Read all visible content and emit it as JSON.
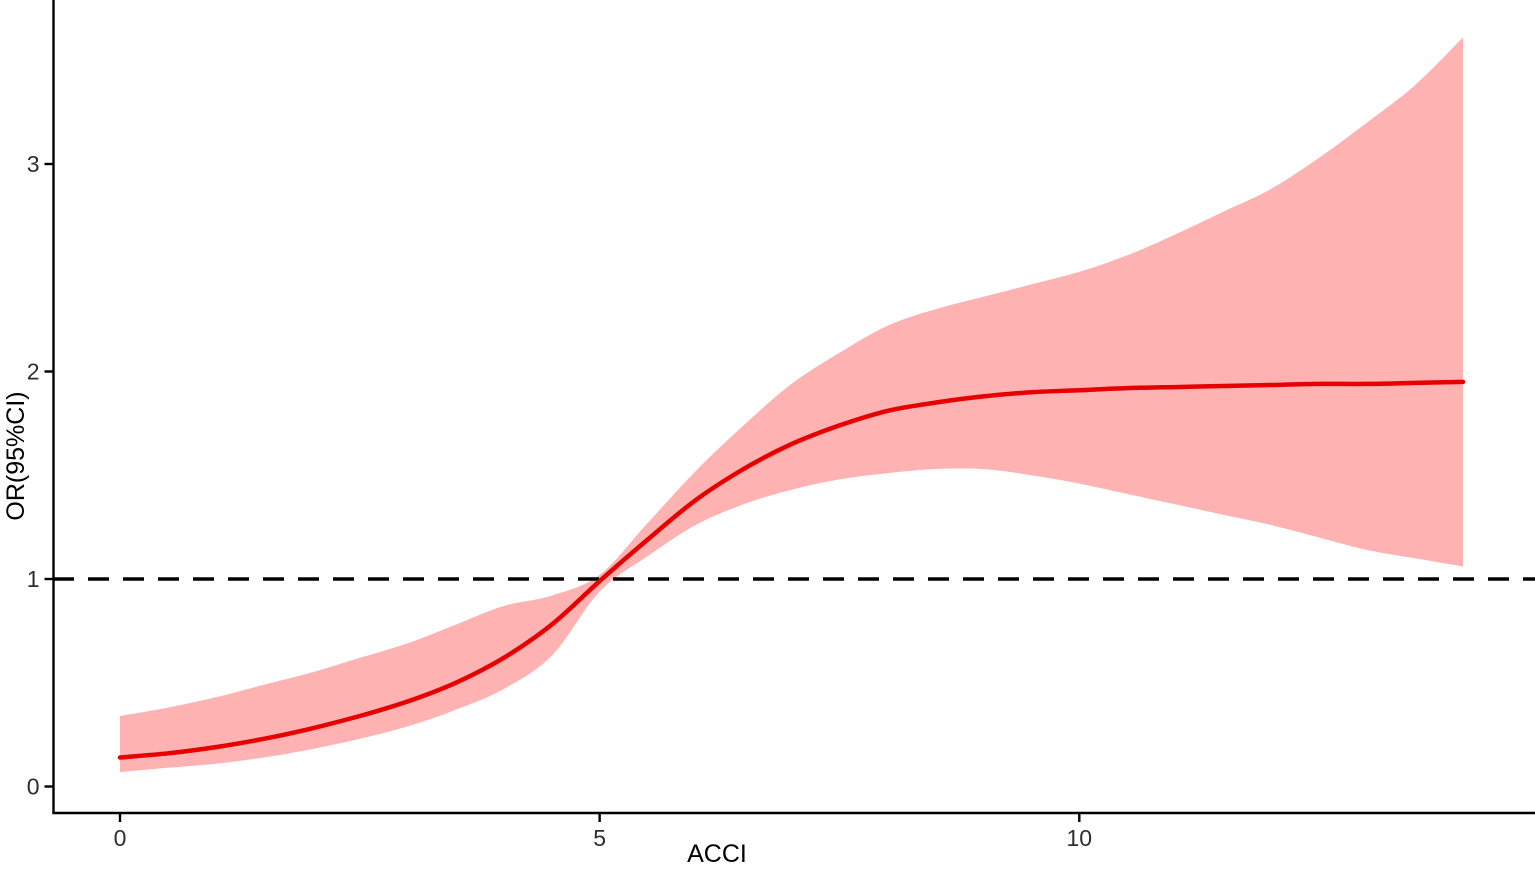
{
  "figure": {
    "background": "#ffffff",
    "axis_color": "#000000",
    "tick_label_color": "#2e2e2e",
    "title_color": "#000000"
  },
  "chart_data": {
    "type": "line",
    "title": "",
    "xlabel": "ACCI",
    "ylabel": "OR(95%CI)",
    "grid": false,
    "legend": "none",
    "xlim": [
      -0.7,
      14.75
    ],
    "ylim": [
      -0.13,
      3.79
    ],
    "x_tick_labels": [
      "0",
      "5",
      "10"
    ],
    "x_tick_values": [
      0,
      5,
      10
    ],
    "y_tick_labels": [
      "0",
      "1",
      "2",
      "3"
    ],
    "y_tick_values": [
      0,
      1,
      2,
      3
    ],
    "reference_line": {
      "y": 1,
      "style": "dashed",
      "color": "#000000"
    },
    "colors": {
      "line": "#e60000",
      "band": "#ffb2b2"
    },
    "x": [
      0,
      0.5,
      1,
      1.5,
      2,
      2.5,
      3,
      3.5,
      4,
      4.5,
      5,
      5.5,
      6,
      6.5,
      7,
      7.5,
      8,
      8.5,
      9,
      9.5,
      10,
      10.5,
      11,
      11.5,
      12,
      12.5,
      13,
      13.5,
      14
    ],
    "series": [
      {
        "name": "OR",
        "values": [
          0.14,
          0.16,
          0.19,
          0.23,
          0.28,
          0.34,
          0.41,
          0.5,
          0.62,
          0.78,
          0.99,
          1.19,
          1.38,
          1.53,
          1.65,
          1.74,
          1.81,
          1.85,
          1.88,
          1.9,
          1.91,
          1.92,
          1.925,
          1.93,
          1.935,
          1.94,
          1.94,
          1.945,
          1.95
        ]
      },
      {
        "name": "upper95CI",
        "values": [
          0.34,
          0.38,
          0.43,
          0.49,
          0.55,
          0.62,
          0.69,
          0.78,
          0.87,
          0.92,
          1.02,
          1.27,
          1.52,
          1.74,
          1.94,
          2.09,
          2.22,
          2.3,
          2.36,
          2.42,
          2.48,
          2.56,
          2.66,
          2.77,
          2.88,
          3.03,
          3.2,
          3.38,
          3.61
        ]
      },
      {
        "name": "lower95CI",
        "values": [
          0.07,
          0.09,
          0.11,
          0.14,
          0.18,
          0.23,
          0.29,
          0.37,
          0.47,
          0.63,
          0.94,
          1.11,
          1.26,
          1.36,
          1.43,
          1.48,
          1.51,
          1.53,
          1.53,
          1.5,
          1.46,
          1.41,
          1.36,
          1.31,
          1.26,
          1.2,
          1.14,
          1.1,
          1.06
        ]
      }
    ]
  }
}
